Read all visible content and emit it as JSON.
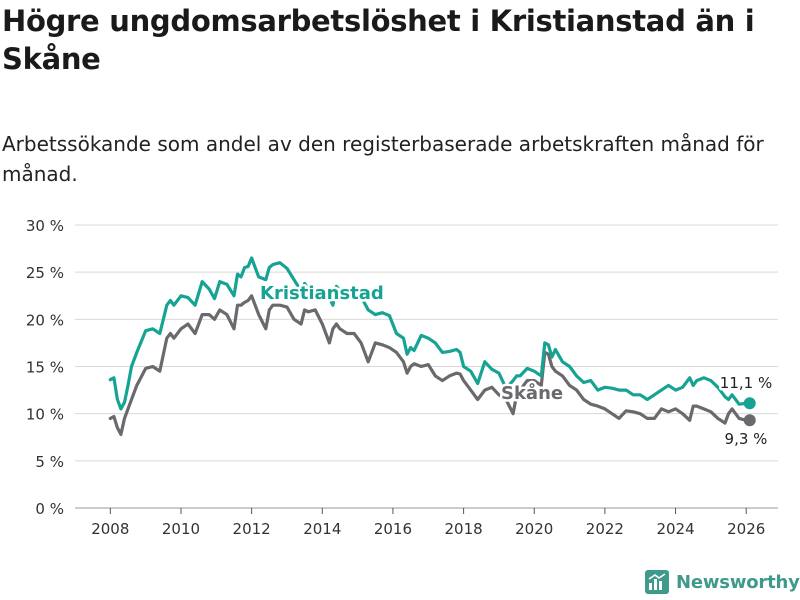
{
  "title": "Högre ungdomsarbetslöshet i Kristianstad än i Skåne",
  "subtitle": "Arbetssökande som andel av den registerbaserade arbetskraften månad för månad.",
  "brand": {
    "name": "Newsworthy",
    "icon": "bar-chart-logo-icon",
    "color": "#3f9a8c"
  },
  "chart_data": {
    "type": "line",
    "title": "Högre ungdomsarbetslöshet i Kristianstad än i Skåne",
    "xlabel": "",
    "ylabel": "",
    "xlim": [
      2007.0,
      2026.9
    ],
    "ylim": [
      0,
      30
    ],
    "grid": true,
    "y_ticks": [
      0,
      5,
      10,
      15,
      20,
      25,
      30
    ],
    "y_tick_labels": [
      "0 %",
      "5 %",
      "10 %",
      "15 %",
      "20 %",
      "25 %",
      "30 %"
    ],
    "x_ticks": [
      2008,
      2010,
      2012,
      2014,
      2016,
      2018,
      2020,
      2022,
      2024,
      2026
    ],
    "x_tick_labels": [
      "2008",
      "2010",
      "2012",
      "2014",
      "2016",
      "2018",
      "2020",
      "2022",
      "2024",
      "2026"
    ],
    "series": [
      {
        "name": "Kristianstad",
        "color": "#16a394",
        "end_label": "11,1 %",
        "x": [
          2008.0,
          2008.1,
          2008.2,
          2008.3,
          2008.4,
          2008.5,
          2008.6,
          2008.75,
          2009.0,
          2009.2,
          2009.4,
          2009.6,
          2009.7,
          2009.8,
          2010.0,
          2010.2,
          2010.4,
          2010.6,
          2010.8,
          2010.95,
          2011.1,
          2011.3,
          2011.5,
          2011.6,
          2011.7,
          2011.8,
          2011.9,
          2012.0,
          2012.2,
          2012.4,
          2012.5,
          2012.6,
          2012.8,
          2013.0,
          2013.2,
          2013.4,
          2013.5,
          2013.6,
          2013.8,
          2014.0,
          2014.2,
          2014.3,
          2014.4,
          2014.5,
          2014.7,
          2014.9,
          2015.1,
          2015.3,
          2015.5,
          2015.7,
          2015.9,
          2016.1,
          2016.3,
          2016.4,
          2016.5,
          2016.6,
          2016.8,
          2017.0,
          2017.2,
          2017.4,
          2017.6,
          2017.8,
          2017.9,
          2018.0,
          2018.2,
          2018.4,
          2018.6,
          2018.8,
          2019.0,
          2019.2,
          2019.4,
          2019.5,
          2019.6,
          2019.8,
          2020.0,
          2020.2,
          2020.3,
          2020.4,
          2020.5,
          2020.6,
          2020.8,
          2021.0,
          2021.2,
          2021.4,
          2021.6,
          2021.8,
          2022.0,
          2022.2,
          2022.4,
          2022.6,
          2022.8,
          2023.0,
          2023.2,
          2023.4,
          2023.6,
          2023.8,
          2024.0,
          2024.2,
          2024.4,
          2024.5,
          2024.6,
          2024.8,
          2025.0,
          2025.2,
          2025.4,
          2025.5,
          2025.6,
          2025.8,
          2026.0,
          2026.1
        ],
        "values": [
          13.6,
          13.8,
          11.5,
          10.5,
          11.2,
          13.0,
          15.0,
          16.5,
          18.8,
          19.0,
          18.5,
          21.5,
          22.0,
          21.5,
          22.5,
          22.3,
          21.5,
          24.0,
          23.2,
          22.2,
          24.0,
          23.7,
          22.5,
          24.8,
          24.5,
          25.5,
          25.6,
          26.5,
          24.5,
          24.2,
          25.5,
          25.8,
          26.0,
          25.4,
          24.2,
          23.0,
          23.8,
          23.3,
          22.5,
          23.0,
          22.3,
          21.5,
          23.5,
          23.0,
          22.5,
          23.4,
          22.4,
          21.0,
          20.5,
          20.7,
          20.4,
          18.5,
          18.0,
          16.3,
          17.0,
          16.7,
          18.3,
          18.0,
          17.5,
          16.5,
          16.6,
          16.8,
          16.5,
          15.0,
          14.5,
          13.2,
          15.5,
          14.7,
          14.3,
          12.7,
          13.5,
          14.0,
          14.0,
          14.8,
          14.5,
          14.0,
          17.5,
          17.3,
          16.0,
          16.8,
          15.5,
          15.0,
          14.0,
          13.3,
          13.5,
          12.5,
          12.8,
          12.7,
          12.5,
          12.5,
          12.0,
          12.0,
          11.5,
          12.0,
          12.5,
          13.0,
          12.5,
          12.8,
          13.8,
          13.0,
          13.5,
          13.8,
          13.5,
          12.8,
          11.8,
          11.5,
          12.0,
          11.0,
          11.1,
          11.1
        ]
      },
      {
        "name": "Skåne",
        "color": "#6a6a6e",
        "end_label": "9,3 %",
        "x": [
          2008.0,
          2008.1,
          2008.2,
          2008.3,
          2008.4,
          2008.5,
          2008.6,
          2008.75,
          2009.0,
          2009.2,
          2009.4,
          2009.6,
          2009.7,
          2009.8,
          2010.0,
          2010.2,
          2010.4,
          2010.6,
          2010.8,
          2010.95,
          2011.1,
          2011.3,
          2011.5,
          2011.6,
          2011.7,
          2011.8,
          2011.9,
          2012.0,
          2012.2,
          2012.4,
          2012.5,
          2012.6,
          2012.8,
          2013.0,
          2013.2,
          2013.4,
          2013.5,
          2013.6,
          2013.8,
          2014.0,
          2014.2,
          2014.3,
          2014.4,
          2014.5,
          2014.7,
          2014.9,
          2015.1,
          2015.3,
          2015.5,
          2015.7,
          2015.9,
          2016.1,
          2016.3,
          2016.4,
          2016.5,
          2016.6,
          2016.8,
          2017.0,
          2017.2,
          2017.4,
          2017.6,
          2017.8,
          2017.9,
          2018.0,
          2018.2,
          2018.4,
          2018.6,
          2018.8,
          2019.0,
          2019.2,
          2019.4,
          2019.5,
          2019.6,
          2019.8,
          2020.0,
          2020.2,
          2020.3,
          2020.4,
          2020.5,
          2020.6,
          2020.8,
          2021.0,
          2021.2,
          2021.4,
          2021.6,
          2021.8,
          2022.0,
          2022.2,
          2022.4,
          2022.6,
          2022.8,
          2023.0,
          2023.2,
          2023.4,
          2023.6,
          2023.8,
          2024.0,
          2024.2,
          2024.4,
          2024.5,
          2024.6,
          2024.8,
          2025.0,
          2025.2,
          2025.4,
          2025.5,
          2025.6,
          2025.8,
          2026.0,
          2026.1
        ],
        "values": [
          9.5,
          9.7,
          8.5,
          7.8,
          9.5,
          10.5,
          11.5,
          13.0,
          14.8,
          15.0,
          14.5,
          18.0,
          18.5,
          18.0,
          19.0,
          19.5,
          18.5,
          20.5,
          20.5,
          20.0,
          21.0,
          20.5,
          19.0,
          21.5,
          21.5,
          21.8,
          22.0,
          22.5,
          20.5,
          19.0,
          21.0,
          21.5,
          21.5,
          21.3,
          20.0,
          19.5,
          21.0,
          20.8,
          21.0,
          19.5,
          17.5,
          19.0,
          19.5,
          19.0,
          18.5,
          18.5,
          17.5,
          15.5,
          17.5,
          17.3,
          17.0,
          16.5,
          15.5,
          14.3,
          15.0,
          15.3,
          15.0,
          15.2,
          14.0,
          13.5,
          14.0,
          14.3,
          14.2,
          13.5,
          12.5,
          11.5,
          12.5,
          12.8,
          12.0,
          11.5,
          10.0,
          12.0,
          12.5,
          13.5,
          13.5,
          13.0,
          16.5,
          16.3,
          15.0,
          14.5,
          14.0,
          13.0,
          12.5,
          11.5,
          11.0,
          10.8,
          10.5,
          10.0,
          9.5,
          10.3,
          10.2,
          10.0,
          9.5,
          9.5,
          10.5,
          10.2,
          10.5,
          10.0,
          9.3,
          10.8,
          10.8,
          10.5,
          10.2,
          9.5,
          9.0,
          10.0,
          10.5,
          9.5,
          9.3,
          9.3
        ]
      }
    ]
  }
}
